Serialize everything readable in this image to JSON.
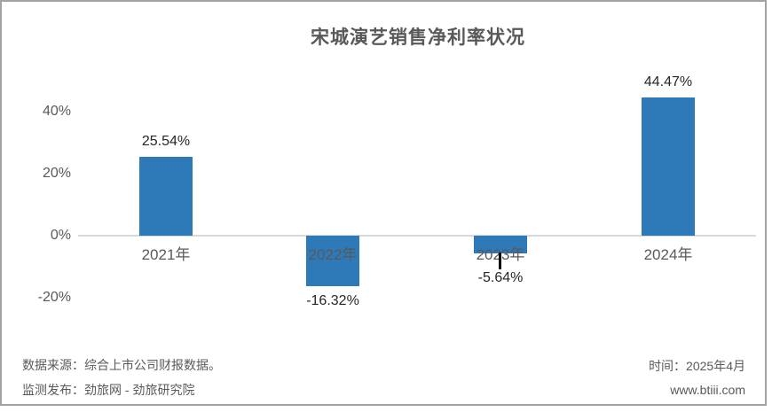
{
  "title": "宋城演艺销售净利率状况",
  "chart_data": {
    "type": "bar",
    "title": "宋城演艺销售净利率状况",
    "categories": [
      "2021年",
      "2022年",
      "2023年",
      "2024年"
    ],
    "values": [
      25.54,
      -16.32,
      -5.64,
      44.47
    ],
    "value_labels": [
      "25.54%",
      "-16.32%",
      "-5.64%",
      "44.47%"
    ],
    "xlabel": "",
    "ylabel": "",
    "ylim": [
      -25,
      50
    ],
    "y_ticks": [
      {
        "label": "40%",
        "value": 40
      },
      {
        "label": "20%",
        "value": 20
      },
      {
        "label": "0%",
        "value": 0
      },
      {
        "label": "-20%",
        "value": -20
      }
    ],
    "grid": false,
    "legend": false,
    "bar_color": "#2e79b8"
  },
  "footer": {
    "source_line": "数据来源：综合上市公司财报数据。",
    "publisher_line": "监测发布：劲旅网 - 劲旅研究院",
    "time_line": "时间：2025年4月",
    "website": "www.btiii.com"
  },
  "colors": {
    "bar": "#2e79b8",
    "title_text": "#595959",
    "axis_text": "#595959",
    "value_text": "#262626",
    "footer_text": "#595959",
    "zero_line": "#d9d9d9",
    "frame_border": "#a3a3a3",
    "cursor": "#0a0a0a"
  }
}
